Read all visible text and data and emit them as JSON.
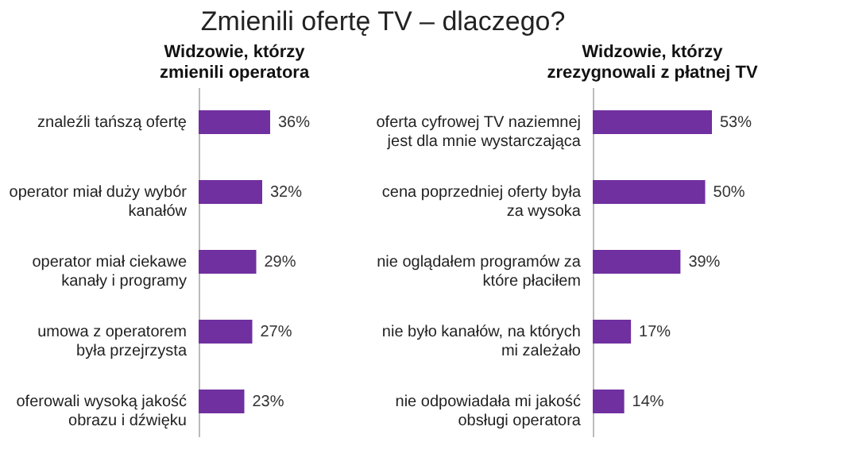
{
  "chart_data": [
    {
      "type": "bar",
      "orientation": "horizontal",
      "title": "Zmienili ofertę TV – dlaczego?",
      "subtitle": "Widzowie, którzy\nzmienili operatora",
      "color": "#7030a0",
      "categories": [
        "znaleźli tańszą ofertę",
        "operator miał duży wybór\nkanałów",
        "operator miał ciekawe\nkanały i programy",
        "umowa z operatorem\nbyła przejrzysta",
        "oferowali wysoką jakość\nobrazu i dźwięku"
      ],
      "values": [
        36,
        32,
        29,
        27,
        23
      ],
      "value_labels": [
        "36%",
        "32%",
        "29%",
        "27%",
        "23%"
      ]
    },
    {
      "type": "bar",
      "orientation": "horizontal",
      "subtitle": "Widzowie, którzy\nzrezygnowali z płatnej TV",
      "color": "#7030a0",
      "categories": [
        "oferta cyfrowej TV naziemnej\njest dla mnie wystarczająca",
        "cena poprzedniej oferty była\nza wysoka",
        "nie oglądałem programów za\nktóre płaciłem",
        "nie było kanałów, na których\nmi zależało",
        "nie odpowiadała mi jakość\nobsługi operatora"
      ],
      "values": [
        53,
        50,
        39,
        17,
        14
      ],
      "value_labels": [
        "53%",
        "50%",
        "39%",
        "17%",
        "14%"
      ]
    }
  ]
}
